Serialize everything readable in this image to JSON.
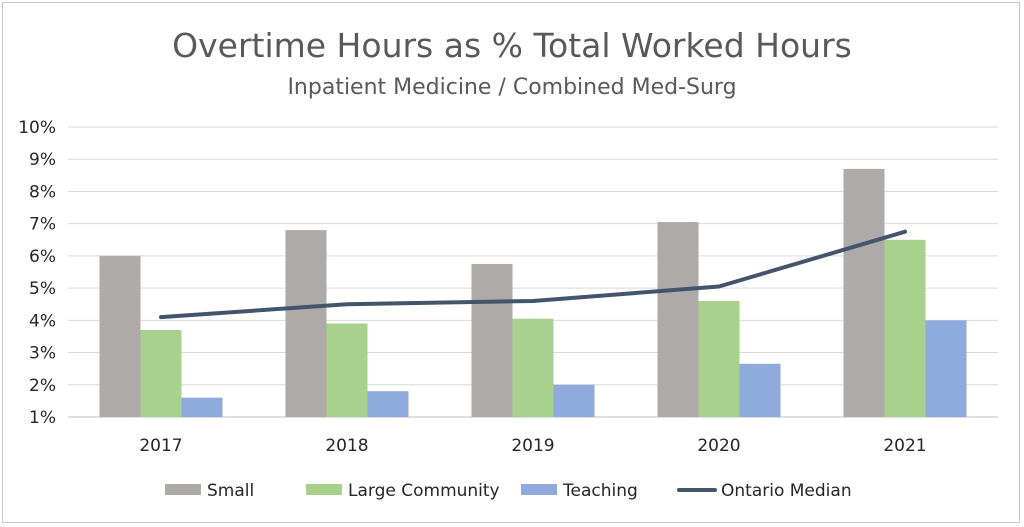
{
  "chart_data": {
    "type": "bar",
    "title": "Overtime Hours as % Total Worked Hours",
    "subtitle": "Inpatient Medicine / Combined Med-Surg",
    "categories": [
      "2017",
      "2018",
      "2019",
      "2020",
      "2021"
    ],
    "ylim": [
      1,
      10
    ],
    "yticks": [
      1,
      2,
      3,
      4,
      5,
      6,
      7,
      8,
      9,
      10
    ],
    "ytick_labels": [
      "1%",
      "2%",
      "3%",
      "4%",
      "5%",
      "6%",
      "7%",
      "8%",
      "9%",
      "10%"
    ],
    "grid": true,
    "legend_position": "bottom",
    "series": [
      {
        "name": "Small",
        "type": "bar",
        "color": "#aeaaaa",
        "values": [
          6.0,
          6.8,
          5.75,
          7.05,
          8.7
        ]
      },
      {
        "name": "Large Community",
        "type": "bar",
        "color": "#a9d18e",
        "values": [
          3.7,
          3.9,
          4.05,
          4.6,
          6.5
        ]
      },
      {
        "name": "Teaching",
        "type": "bar",
        "color": "#8faadc",
        "values": [
          1.6,
          1.8,
          2.0,
          2.65,
          4.0
        ]
      },
      {
        "name": "Ontario Median",
        "type": "line",
        "color": "#44546a",
        "values": [
          4.1,
          4.5,
          4.6,
          5.05,
          6.75
        ]
      }
    ]
  }
}
